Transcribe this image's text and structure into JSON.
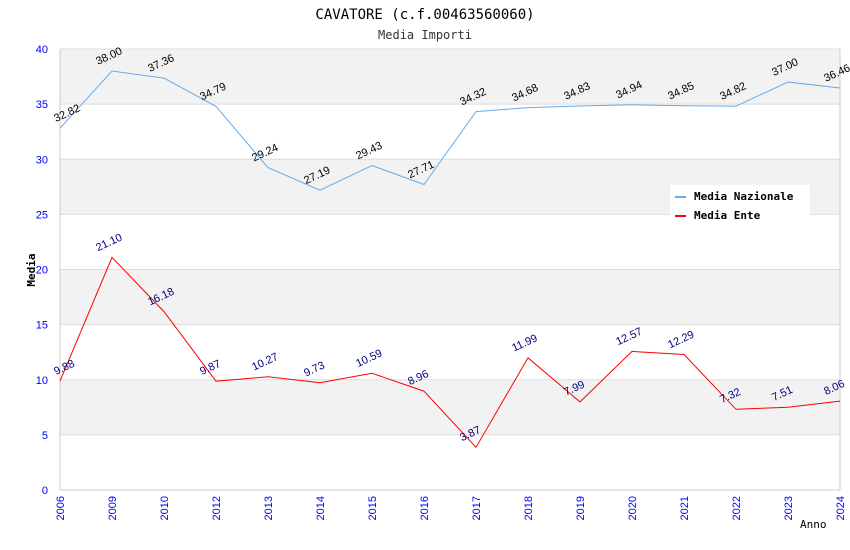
{
  "chart_data": {
    "type": "line",
    "title": "CAVATORE (c.f.00463560060)",
    "subtitle": "Media Importi",
    "xlabel": "Anno",
    "ylabel": "Media",
    "ylim": [
      0,
      40
    ],
    "yticks": [
      "0",
      "5",
      "10",
      "15",
      "20",
      "25",
      "30",
      "35",
      "40"
    ],
    "grid": true,
    "legend_position": "top-right",
    "categories": [
      "2006",
      "2009",
      "2010",
      "2012",
      "2013",
      "2014",
      "2015",
      "2016",
      "2017",
      "2018",
      "2019",
      "2020",
      "2021",
      "2022",
      "2023",
      "2024"
    ],
    "series": [
      {
        "name": "Media Nazionale",
        "color": "#66aaee",
        "label_color": "#000000",
        "values": [
          32.82,
          38.0,
          37.36,
          34.79,
          29.24,
          27.19,
          29.43,
          27.71,
          34.32,
          34.68,
          34.83,
          34.94,
          34.85,
          34.82,
          37.0,
          36.46
        ]
      },
      {
        "name": "Media Ente",
        "color": "#ff0000",
        "label_color": "#000080",
        "values": [
          9.88,
          21.1,
          16.18,
          9.87,
          10.27,
          9.73,
          10.59,
          8.96,
          3.87,
          11.99,
          7.99,
          12.57,
          12.29,
          7.32,
          7.51,
          8.06
        ]
      }
    ]
  }
}
